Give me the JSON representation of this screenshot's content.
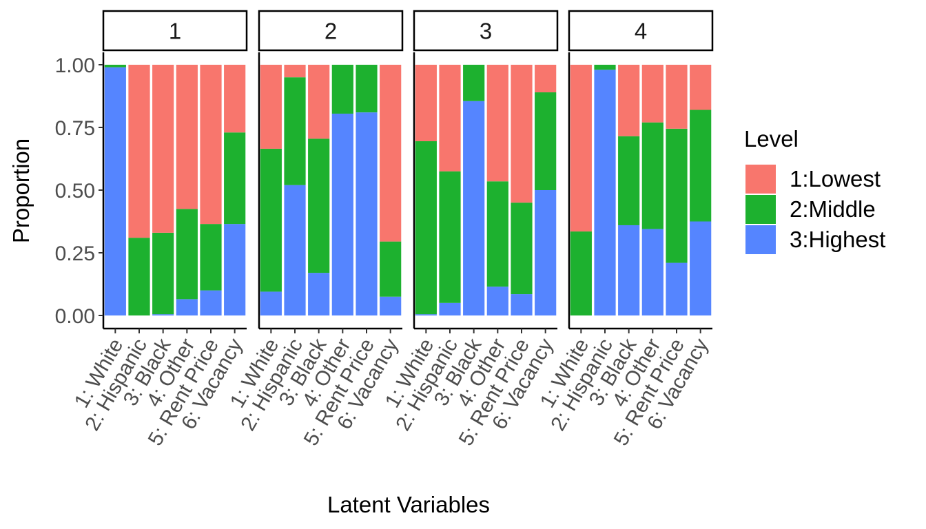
{
  "chart_data": {
    "type": "bar",
    "stacked": true,
    "facets": [
      "1",
      "2",
      "3",
      "4"
    ],
    "categories": [
      "1: White",
      "2: Hispanic",
      "3: Black",
      "4: Other",
      "5: Rent Price",
      "6: Vacancy"
    ],
    "xlabel": "Latent Variables",
    "ylabel": "Proportion",
    "ylim": [
      0,
      1
    ],
    "yticks": [
      "0.00",
      "0.25",
      "0.50",
      "0.75",
      "1.00"
    ],
    "legend": {
      "title": "Level",
      "position": "right",
      "entries": [
        "1:Lowest",
        "2:Middle",
        "3:Highest"
      ]
    },
    "colors": {
      "1:Lowest": "#F8766D",
      "2:Middle": "#1DB12F",
      "3:Highest": "#5585FF"
    },
    "panels": [
      {
        "facet": "1",
        "series": [
          {
            "name": "3:Highest",
            "values": [
              0.99,
              0.0,
              0.005,
              0.065,
              0.1,
              0.365
            ]
          },
          {
            "name": "2:Middle",
            "values": [
              0.01,
              0.31,
              0.325,
              0.36,
              0.265,
              0.365
            ]
          },
          {
            "name": "1:Lowest",
            "values": [
              0.0,
              0.69,
              0.67,
              0.575,
              0.635,
              0.27
            ]
          }
        ]
      },
      {
        "facet": "2",
        "series": [
          {
            "name": "3:Highest",
            "values": [
              0.095,
              0.52,
              0.17,
              0.805,
              0.81,
              0.075
            ]
          },
          {
            "name": "2:Middle",
            "values": [
              0.57,
              0.43,
              0.535,
              0.195,
              0.19,
              0.22
            ]
          },
          {
            "name": "1:Lowest",
            "values": [
              0.335,
              0.05,
              0.295,
              0.0,
              0.0,
              0.705
            ]
          }
        ]
      },
      {
        "facet": "3",
        "series": [
          {
            "name": "3:Highest",
            "values": [
              0.005,
              0.05,
              0.855,
              0.115,
              0.085,
              0.5
            ]
          },
          {
            "name": "2:Middle",
            "values": [
              0.69,
              0.525,
              0.145,
              0.42,
              0.365,
              0.39
            ]
          },
          {
            "name": "1:Lowest",
            "values": [
              0.305,
              0.425,
              0.0,
              0.465,
              0.55,
              0.11
            ]
          }
        ]
      },
      {
        "facet": "4",
        "series": [
          {
            "name": "3:Highest",
            "values": [
              0.0,
              0.98,
              0.36,
              0.345,
              0.21,
              0.375
            ]
          },
          {
            "name": "2:Middle",
            "values": [
              0.335,
              0.02,
              0.355,
              0.425,
              0.535,
              0.445
            ]
          },
          {
            "name": "1:Lowest",
            "values": [
              0.665,
              0.0,
              0.285,
              0.23,
              0.255,
              0.18
            ]
          }
        ]
      }
    ]
  }
}
